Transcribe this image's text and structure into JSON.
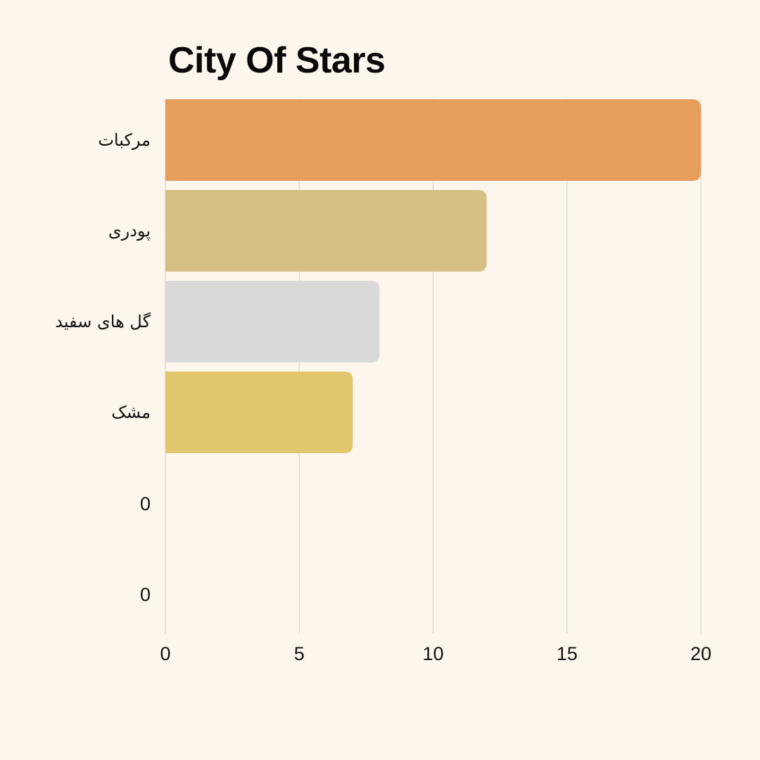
{
  "chart_data": {
    "type": "bar",
    "orientation": "horizontal",
    "title": "City Of Stars",
    "xlabel": "",
    "ylabel": "",
    "categories": [
      "مرکبات",
      "پودری",
      "گل های سفید",
      "مشک",
      "0",
      "0"
    ],
    "values": [
      20,
      12,
      8,
      7,
      0,
      0
    ],
    "bar_colors": [
      "#e59e5c",
      "#d5bf85",
      "#d9d9d9",
      "#e2c66e",
      "#e2c66e",
      "#e2c66e"
    ],
    "xlim": [
      0,
      20
    ],
    "xticks": [
      0,
      5,
      10,
      15,
      20
    ],
    "grid": "vertical",
    "legend": "none"
  },
  "colors": {
    "background": "#fdf6ec",
    "gridline": "#cfcfc7",
    "text": "#111111"
  }
}
